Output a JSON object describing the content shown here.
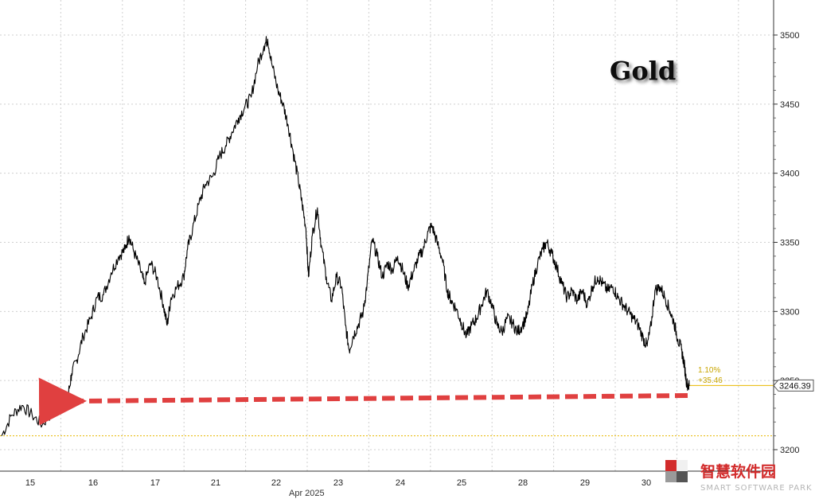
{
  "chart_data": {
    "type": "line",
    "title": "Gold",
    "xlabel": "Apr 2025",
    "ylabel": "",
    "ylim": [
      3190,
      3520
    ],
    "yticks": [
      3200,
      3250,
      3300,
      3350,
      3400,
      3450,
      3500
    ],
    "grid": true,
    "x_tick_labels": [
      "15",
      "16",
      "17",
      "21",
      "22",
      "23",
      "24",
      "25",
      "28",
      "29",
      "30"
    ],
    "series": [
      {
        "color": "#000000",
        "points": [
          [
            0,
            3210
          ],
          [
            0.4,
            3225
          ],
          [
            0.8,
            3232
          ],
          [
            1.2,
            3225
          ],
          [
            1.6,
            3218
          ],
          [
            2.0,
            3228
          ],
          [
            2.3,
            3232
          ],
          [
            2.6,
            3238
          ],
          [
            2.75,
            3255
          ],
          [
            2.95,
            3265
          ],
          [
            3.2,
            3282
          ],
          [
            3.5,
            3295
          ],
          [
            3.75,
            3310
          ],
          [
            4.0,
            3312
          ],
          [
            4.3,
            3328
          ],
          [
            4.6,
            3340
          ],
          [
            4.85,
            3345
          ],
          [
            5.0,
            3355
          ],
          [
            5.2,
            3343
          ],
          [
            5.45,
            3330
          ],
          [
            5.6,
            3320
          ],
          [
            5.85,
            3335
          ],
          [
            6.1,
            3325
          ],
          [
            6.35,
            3305
          ],
          [
            6.5,
            3290
          ],
          [
            6.65,
            3310
          ],
          [
            6.9,
            3318
          ],
          [
            7.15,
            3325
          ],
          [
            7.3,
            3345
          ],
          [
            7.5,
            3360
          ],
          [
            7.75,
            3378
          ],
          [
            8.0,
            3392
          ],
          [
            8.3,
            3398
          ],
          [
            8.55,
            3412
          ],
          [
            8.8,
            3420
          ],
          [
            9.05,
            3430
          ],
          [
            9.3,
            3440
          ],
          [
            9.55,
            3448
          ],
          [
            9.8,
            3455
          ],
          [
            10.05,
            3478
          ],
          [
            10.3,
            3492
          ],
          [
            10.45,
            3497
          ],
          [
            10.6,
            3480
          ],
          [
            10.85,
            3460
          ],
          [
            11.05,
            3450
          ],
          [
            11.25,
            3435
          ],
          [
            11.45,
            3415
          ],
          [
            11.65,
            3395
          ],
          [
            11.8,
            3378
          ],
          [
            11.95,
            3360
          ],
          [
            12.05,
            3325
          ],
          [
            12.2,
            3355
          ],
          [
            12.4,
            3375
          ],
          [
            12.55,
            3348
          ],
          [
            12.75,
            3325
          ],
          [
            12.95,
            3308
          ],
          [
            13.15,
            3325
          ],
          [
            13.35,
            3318
          ],
          [
            13.5,
            3290
          ],
          [
            13.65,
            3272
          ],
          [
            13.8,
            3282
          ],
          [
            14.0,
            3290
          ],
          [
            14.2,
            3300
          ],
          [
            14.35,
            3320
          ],
          [
            14.55,
            3352
          ],
          [
            14.75,
            3340
          ],
          [
            14.95,
            3325
          ],
          [
            15.15,
            3335
          ],
          [
            15.35,
            3330
          ],
          [
            15.55,
            3340
          ],
          [
            15.75,
            3330
          ],
          [
            15.95,
            3318
          ],
          [
            16.15,
            3328
          ],
          [
            16.35,
            3338
          ],
          [
            16.55,
            3345
          ],
          [
            16.75,
            3358
          ],
          [
            16.9,
            3362
          ],
          [
            17.1,
            3350
          ],
          [
            17.3,
            3338
          ],
          [
            17.5,
            3315
          ],
          [
            17.65,
            3308
          ],
          [
            17.85,
            3302
          ],
          [
            18.05,
            3292
          ],
          [
            18.25,
            3282
          ],
          [
            18.45,
            3290
          ],
          [
            18.65,
            3295
          ],
          [
            18.85,
            3305
          ],
          [
            19.05,
            3315
          ],
          [
            19.25,
            3305
          ],
          [
            19.45,
            3290
          ],
          [
            19.65,
            3285
          ],
          [
            19.85,
            3295
          ],
          [
            20.05,
            3292
          ],
          [
            20.25,
            3285
          ],
          [
            20.45,
            3290
          ],
          [
            20.65,
            3298
          ],
          [
            20.85,
            3320
          ],
          [
            21.05,
            3335
          ],
          [
            21.25,
            3345
          ],
          [
            21.4,
            3350
          ],
          [
            21.6,
            3342
          ],
          [
            21.8,
            3332
          ],
          [
            22.0,
            3320
          ],
          [
            22.2,
            3310
          ],
          [
            22.4,
            3315
          ],
          [
            22.6,
            3308
          ],
          [
            22.8,
            3315
          ],
          [
            23.0,
            3305
          ],
          [
            23.2,
            3318
          ],
          [
            23.4,
            3325
          ],
          [
            23.6,
            3320
          ],
          [
            23.8,
            3315
          ],
          [
            24.0,
            3318
          ],
          [
            24.2,
            3310
          ],
          [
            24.4,
            3305
          ],
          [
            24.6,
            3300
          ],
          [
            24.8,
            3295
          ],
          [
            25.0,
            3290
          ],
          [
            25.2,
            3280
          ],
          [
            25.35,
            3275
          ],
          [
            25.5,
            3290
          ],
          [
            25.65,
            3315
          ],
          [
            25.85,
            3318
          ],
          [
            26.05,
            3310
          ],
          [
            26.25,
            3300
          ],
          [
            26.4,
            3292
          ],
          [
            26.55,
            3280
          ],
          [
            26.7,
            3272
          ],
          [
            26.8,
            3262
          ],
          [
            26.9,
            3248
          ],
          [
            27.0,
            3246
          ]
        ]
      }
    ],
    "last_value": "3246.39",
    "annotation_pct": "1.10%",
    "annotation_chg": "+35.46",
    "reference_level": 3210,
    "arrow_level": 3238,
    "watermark_cn": "智慧软件园",
    "watermark_en": "SMART SOFTWARE PARK",
    "colors": {
      "line": "#000000",
      "grid": "#cfcfcf",
      "reference": "#e8b800",
      "arrow": "#e04040",
      "watermark_red": "#d22b2b",
      "watermark_dark": "#555555",
      "watermark_grey": "#b5b5b5"
    }
  }
}
